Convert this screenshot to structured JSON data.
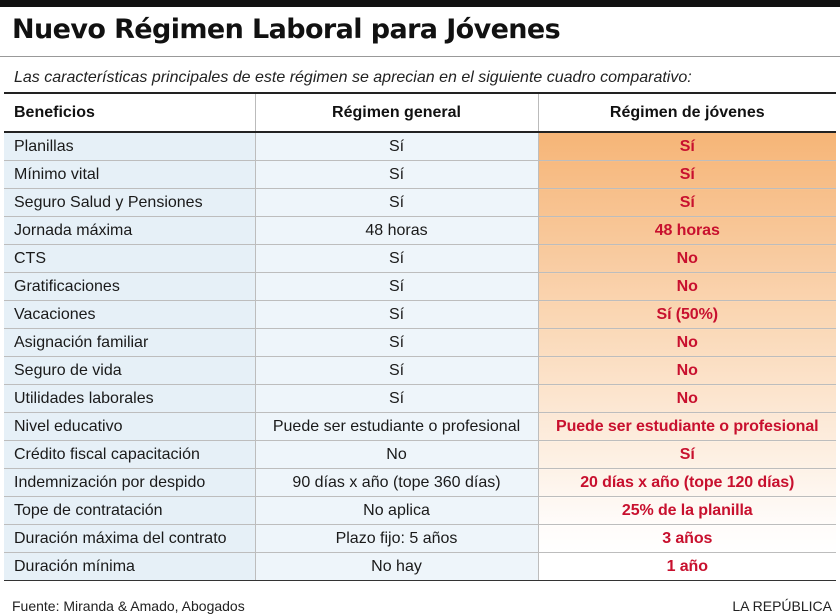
{
  "title": "Nuevo Régimen Laboral para Jóvenes",
  "subtitle": "Las características principales de este régimen se aprecian en el siguiente cuadro comparativo:",
  "table": {
    "headers": [
      "Beneficios",
      "Régimen general",
      "Régimen de jóvenes"
    ],
    "rows": [
      [
        "Planillas",
        "Sí",
        "Sí"
      ],
      [
        "Mínimo vital",
        "Sí",
        "Sí"
      ],
      [
        "Seguro Salud y Pensiones",
        "Sí",
        "Sí"
      ],
      [
        "Jornada máxima",
        "48 horas",
        "48 horas"
      ],
      [
        "CTS",
        "Sí",
        "No"
      ],
      [
        "Gratificaciones",
        "Sí",
        "No"
      ],
      [
        "Vacaciones",
        "Sí",
        "Sí (50%)"
      ],
      [
        "Asignación familiar",
        "Sí",
        "No"
      ],
      [
        "Seguro de vida",
        "Sí",
        "No"
      ],
      [
        "Utilidades laborales",
        "Sí",
        "No"
      ],
      [
        "Nivel educativo",
        "Puede ser estudiante o profesional",
        "Puede  ser estudiante o profesional"
      ],
      [
        "Crédito fiscal capacitación",
        "No",
        "Sí"
      ],
      [
        "Indemnización por despido",
        "90 días x año (tope 360 días)",
        "20 días x año (tope 120 días)"
      ],
      [
        "Tope de contratación",
        "No aplica",
        "25% de la planilla"
      ],
      [
        "Duración máxima del contrato",
        "Plazo fijo: 5 años",
        "3 años"
      ],
      [
        "Duración mínima",
        "No hay",
        "1 año"
      ]
    ]
  },
  "footer": {
    "source": "Fuente: Miranda & Amado, Abogados",
    "brand": "LA REPÚBLICA"
  },
  "colors": {
    "accent_text": "#c8102e",
    "left_column_bg": "#e6f0f7",
    "right_gradient_top": "#f6b577",
    "right_gradient_bottom": "#ffffff"
  }
}
